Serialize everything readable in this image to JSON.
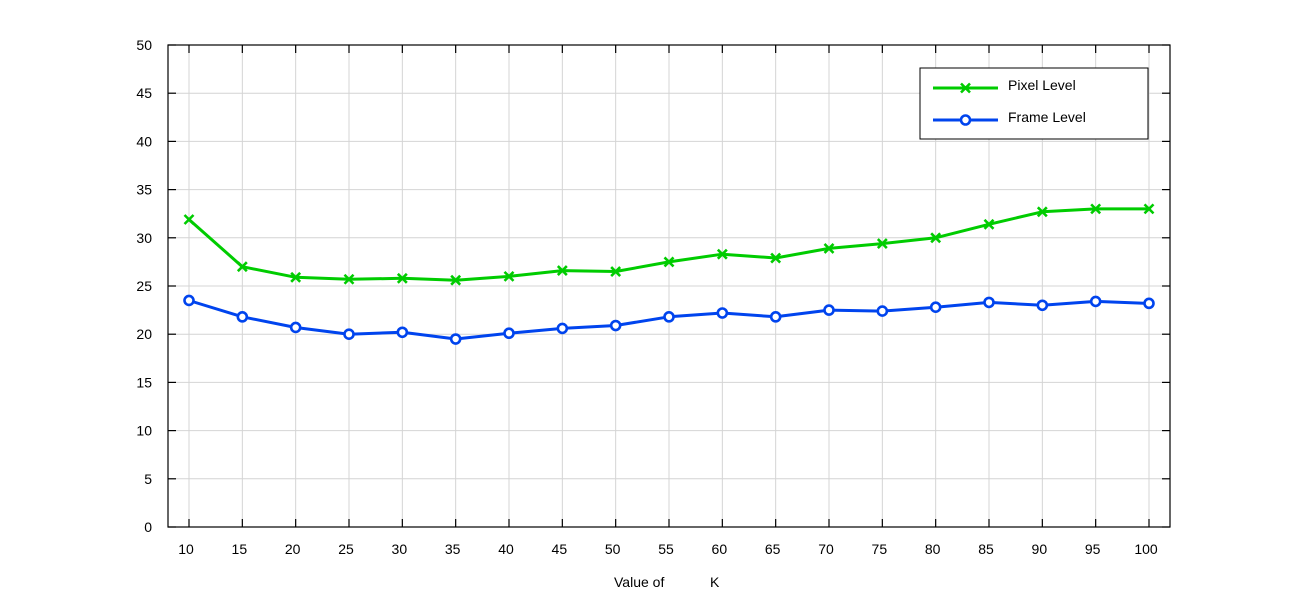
{
  "chart_data": {
    "type": "line",
    "title": "",
    "xlabel_parts": [
      "Value of",
      "K"
    ],
    "ylabel": "",
    "x": [
      10,
      15,
      20,
      25,
      30,
      35,
      40,
      45,
      50,
      55,
      60,
      65,
      70,
      75,
      80,
      85,
      90,
      95,
      100
    ],
    "xticks": [
      "10",
      "15",
      "20",
      "25",
      "30",
      "35",
      "40",
      "45",
      "50",
      "55",
      "60",
      "65",
      "70",
      "75",
      "80",
      "85",
      "90",
      "95",
      "100"
    ],
    "yticks": [
      "0",
      "5",
      "10",
      "15",
      "20",
      "25",
      "30",
      "35",
      "40",
      "45",
      "50"
    ],
    "ylim": [
      0,
      50
    ],
    "grid": true,
    "legend_position": "top-right",
    "series": [
      {
        "name": "Pixel Level",
        "color": "#00cc00",
        "marker": "x",
        "values": [
          31.9,
          27.0,
          25.9,
          25.7,
          25.8,
          25.6,
          26.0,
          26.6,
          26.5,
          27.5,
          28.3,
          27.9,
          28.9,
          29.4,
          30.0,
          31.4,
          32.7,
          33.0,
          33.0
        ]
      },
      {
        "name": "Frame Level",
        "color": "#0044ee",
        "marker": "circle",
        "values": [
          23.5,
          21.8,
          20.7,
          20.0,
          20.2,
          19.5,
          20.1,
          20.6,
          20.9,
          21.8,
          22.2,
          21.8,
          22.5,
          22.4,
          22.8,
          23.3,
          23.0,
          23.4,
          23.2
        ]
      }
    ]
  }
}
